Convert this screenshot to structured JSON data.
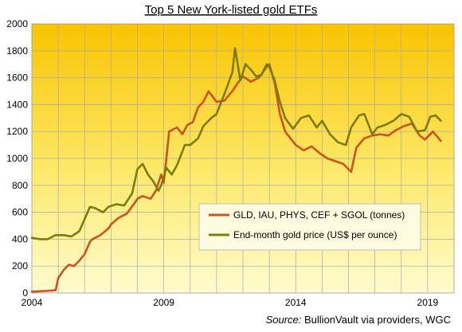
{
  "chart_data": {
    "type": "line",
    "title": "Top 5 New York-listed gold ETFs",
    "xlabel": "",
    "ylabel": "",
    "xlim": [
      2004,
      2020
    ],
    "ylim": [
      0,
      2000
    ],
    "x_ticks": [
      "2004",
      "2009",
      "2014",
      "2019"
    ],
    "x_tick_values": [
      2004,
      2009,
      2014,
      2019
    ],
    "y_ticks": [
      "0",
      "200",
      "400",
      "600",
      "800",
      "1000",
      "1200",
      "1400",
      "1600",
      "1800",
      "2000"
    ],
    "y_tick_values": [
      0,
      200,
      400,
      600,
      800,
      1000,
      1200,
      1400,
      1600,
      1800,
      2000
    ],
    "grid": true,
    "legend_position": "lower-right",
    "source_prefix": "Source:",
    "source_rest": " BullionVault via providers, WGC",
    "series": [
      {
        "name": "GLD, IAU, PHYS, CEF + SGOL (tonnes)",
        "color": "#c8541e",
        "x": [
          2004.0,
          2004.5,
          2004.9,
          2005.0,
          2005.2,
          2005.4,
          2005.6,
          2005.8,
          2006.0,
          2006.2,
          2006.3,
          2006.6,
          2006.9,
          2007.0,
          2007.3,
          2007.6,
          2007.9,
          2008.0,
          2008.2,
          2008.5,
          2008.7,
          2008.9,
          2009.0,
          2009.1,
          2009.2,
          2009.5,
          2009.7,
          2009.9,
          2010.1,
          2010.3,
          2010.5,
          2010.7,
          2011.0,
          2011.3,
          2011.6,
          2011.8,
          2012.0,
          2012.3,
          2012.6,
          2012.9,
          2013.0,
          2013.2,
          2013.4,
          2013.6,
          2013.8,
          2014.0,
          2014.3,
          2014.6,
          2014.9,
          2015.2,
          2015.5,
          2015.8,
          2016.0,
          2016.1,
          2016.3,
          2016.6,
          2016.9,
          2017.2,
          2017.5,
          2017.8,
          2018.1,
          2018.4,
          2018.7,
          2018.9,
          2019.2,
          2019.5
        ],
        "values": [
          10,
          15,
          20,
          110,
          170,
          210,
          200,
          240,
          290,
          380,
          400,
          430,
          480,
          510,
          560,
          590,
          670,
          700,
          720,
          700,
          760,
          880,
          820,
          1000,
          1200,
          1230,
          1180,
          1250,
          1270,
          1380,
          1420,
          1500,
          1420,
          1430,
          1500,
          1560,
          1610,
          1570,
          1600,
          1680,
          1700,
          1560,
          1330,
          1200,
          1150,
          1100,
          1060,
          1090,
          1040,
          1000,
          980,
          960,
          920,
          900,
          1080,
          1150,
          1170,
          1180,
          1170,
          1210,
          1240,
          1260,
          1170,
          1140,
          1200,
          1130
        ]
      },
      {
        "name": "End-month gold price (US$ per ounce)",
        "color": "#7c7c0a",
        "x": [
          2004.0,
          2004.3,
          2004.6,
          2004.9,
          2005.2,
          2005.5,
          2005.8,
          2006.0,
          2006.2,
          2006.4,
          2006.7,
          2006.9,
          2007.2,
          2007.5,
          2007.8,
          2008.0,
          2008.2,
          2008.4,
          2008.6,
          2008.8,
          2008.9,
          2009.1,
          2009.3,
          2009.5,
          2009.8,
          2010.0,
          2010.3,
          2010.5,
          2010.8,
          2011.0,
          2011.3,
          2011.6,
          2011.7,
          2011.9,
          2012.1,
          2012.3,
          2012.5,
          2012.7,
          2012.9,
          2013.0,
          2013.2,
          2013.4,
          2013.6,
          2013.9,
          2014.2,
          2014.5,
          2014.8,
          2015.0,
          2015.3,
          2015.6,
          2015.9,
          2016.1,
          2016.4,
          2016.6,
          2016.9,
          2017.1,
          2017.4,
          2017.7,
          2018.0,
          2018.3,
          2018.6,
          2018.9,
          2019.1,
          2019.3,
          2019.5
        ],
        "values": [
          410,
          400,
          400,
          430,
          430,
          420,
          460,
          550,
          640,
          630,
          600,
          640,
          660,
          650,
          740,
          920,
          960,
          880,
          830,
          760,
          800,
          930,
          880,
          950,
          1100,
          1100,
          1150,
          1240,
          1300,
          1330,
          1480,
          1640,
          1820,
          1580,
          1700,
          1660,
          1610,
          1620,
          1700,
          1680,
          1580,
          1420,
          1300,
          1220,
          1300,
          1320,
          1230,
          1280,
          1180,
          1120,
          1100,
          1230,
          1320,
          1330,
          1180,
          1230,
          1250,
          1280,
          1330,
          1310,
          1200,
          1210,
          1310,
          1320,
          1280
        ]
      }
    ]
  }
}
